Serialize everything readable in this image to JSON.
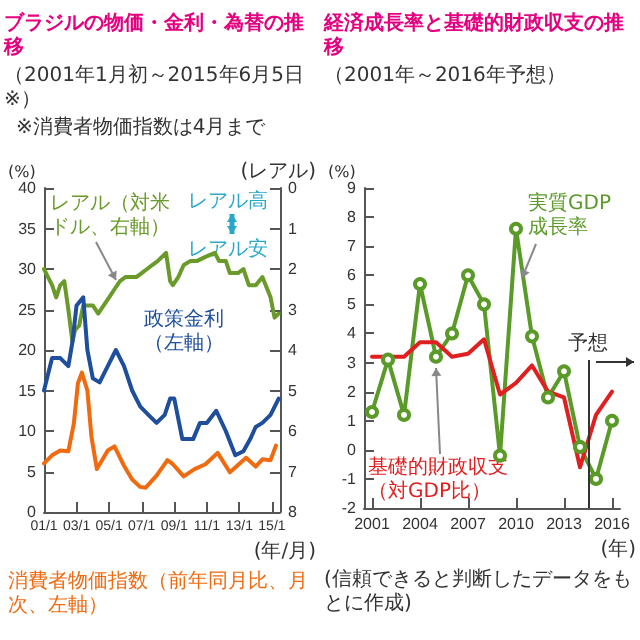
{
  "chart_data": [
    {
      "type": "line",
      "title": "ブラジルの物価・金利・為替の推移",
      "subtitle": "（2001年1月初～2015年6月5日※）",
      "annotations": [
        "※消費者物価指数は4月まで",
        "レアル高",
        "レアル安"
      ],
      "xlabel": "(年/月)",
      "ylabel": "(%)",
      "y2label": "(レアル)",
      "xlim": [
        "2001-01",
        "2015-07"
      ],
      "xticks": [
        {
          "value": "2001-01",
          "label": "01/1"
        },
        {
          "value": "2003-01",
          "label": "03/1"
        },
        {
          "value": "2005-01",
          "label": "05/1"
        },
        {
          "value": "2007-01",
          "label": "07/1"
        },
        {
          "value": "2009-01",
          "label": "09/1"
        },
        {
          "value": "2011-01",
          "label": "11/1"
        },
        {
          "value": "2013-01",
          "label": "13/1"
        },
        {
          "value": "2015-01",
          "label": "15/1"
        }
      ],
      "ylim": [
        0,
        40
      ],
      "yticks": [
        0,
        5,
        10,
        15,
        20,
        25,
        30,
        35,
        40
      ],
      "y2lim": [
        8,
        0
      ],
      "y2ticks": [
        0,
        1,
        2,
        3,
        4,
        5,
        6,
        7,
        8
      ],
      "grid": false,
      "legend": false,
      "marker": "none",
      "series": [
        {
          "name": "レアル（対米ドル、右軸）",
          "color": "#6a9a2a",
          "axis": "y2",
          "x": [
            "2001-01",
            "2001-04",
            "2001-07",
            "2001-10",
            "2002-01",
            "2002-04",
            "2002-07",
            "2002-10",
            "2002-12",
            "2003-03",
            "2003-06",
            "2003-09",
            "2004-01",
            "2004-05",
            "2004-09",
            "2005-01",
            "2005-05",
            "2005-09",
            "2006-01",
            "2006-05",
            "2006-09",
            "2007-01",
            "2007-05",
            "2007-09",
            "2008-01",
            "2008-07",
            "2008-10",
            "2008-12",
            "2009-04",
            "2009-08",
            "2010-01",
            "2010-06",
            "2010-12",
            "2011-07",
            "2011-10",
            "2012-03",
            "2012-06",
            "2012-12",
            "2013-04",
            "2013-08",
            "2014-01",
            "2014-06",
            "2014-12",
            "2015-03",
            "2015-06"
          ],
          "values": [
            2.0,
            2.2,
            2.4,
            2.7,
            2.4,
            2.3,
            3.0,
            3.8,
            3.5,
            3.4,
            2.9,
            2.9,
            2.9,
            3.1,
            2.9,
            2.7,
            2.5,
            2.3,
            2.2,
            2.2,
            2.2,
            2.1,
            2.0,
            1.9,
            1.8,
            1.6,
            2.3,
            2.4,
            2.2,
            1.9,
            1.8,
            1.8,
            1.7,
            1.6,
            1.8,
            1.8,
            2.1,
            2.1,
            2.0,
            2.4,
            2.4,
            2.2,
            2.7,
            3.2,
            3.1
          ]
        },
        {
          "name": "政策金利（左軸）",
          "color": "#1f4e9c",
          "x": [
            "2001-01",
            "2001-07",
            "2002-01",
            "2002-07",
            "2002-10",
            "2003-01",
            "2003-06",
            "2003-09",
            "2004-01",
            "2004-06",
            "2004-12",
            "2005-06",
            "2005-12",
            "2006-06",
            "2006-12",
            "2007-06",
            "2007-12",
            "2008-06",
            "2008-10",
            "2009-01",
            "2009-07",
            "2010-03",
            "2010-08",
            "2011-01",
            "2011-08",
            "2012-03",
            "2012-10",
            "2013-04",
            "2013-09",
            "2014-01",
            "2014-06",
            "2014-12",
            "2015-06"
          ],
          "values": [
            15,
            19,
            19,
            18,
            21,
            25.5,
            26.5,
            20,
            16.5,
            16,
            18,
            20,
            18,
            15,
            13,
            12,
            11,
            12,
            14,
            14,
            9,
            9,
            11,
            11,
            12.5,
            10,
            7,
            7.5,
            9,
            10.5,
            11,
            12,
            14
          ]
        },
        {
          "name": "消費者物価指数（前年同月比、月次、左軸）",
          "color": "#f06a10",
          "x": [
            "2001-01",
            "2001-07",
            "2002-01",
            "2002-07",
            "2002-11",
            "2003-02",
            "2003-05",
            "2003-09",
            "2003-12",
            "2004-04",
            "2004-12",
            "2005-05",
            "2005-12",
            "2006-06",
            "2006-12",
            "2007-04",
            "2007-12",
            "2008-08",
            "2008-12",
            "2009-08",
            "2010-04",
            "2010-12",
            "2011-09",
            "2012-06",
            "2012-12",
            "2013-06",
            "2014-01",
            "2014-06",
            "2014-12",
            "2015-04"
          ],
          "values": [
            6,
            7,
            7.6,
            7.5,
            10.9,
            15.9,
            17.2,
            15,
            9.3,
            5.3,
            7.6,
            8.1,
            5.7,
            4,
            3.1,
            3,
            4.5,
            6.4,
            5.9,
            4.4,
            5.3,
            5.9,
            7.3,
            4.9,
            5.8,
            6.7,
            5.6,
            6.5,
            6.4,
            8.2
          ]
        }
      ]
    },
    {
      "type": "line",
      "title": "経済成長率と基礎的財政収支の推移",
      "subtitle": "（2001年～2016年予想）",
      "annotations": [
        "(信頼できると判断したデータをもとに作成)"
      ],
      "xlabel": "(年)",
      "ylabel": "(%)",
      "x": [
        2001,
        2002,
        2003,
        2004,
        2005,
        2006,
        2007,
        2008,
        2009,
        2010,
        2011,
        2012,
        2013,
        2014,
        2015,
        2016
      ],
      "xlim": [
        2000.5,
        2016.5
      ],
      "xticks": [
        2001,
        2004,
        2007,
        2010,
        2013,
        2016
      ],
      "ylim": [
        -2,
        9
      ],
      "yticks": [
        -2,
        -1,
        0,
        1,
        2,
        3,
        4,
        5,
        6,
        7,
        8,
        9
      ],
      "grid": false,
      "legend": false,
      "ref_lines": [
        {
          "axis": "x",
          "value": 2014.5,
          "label": "予想",
          "color": "#333333"
        }
      ],
      "series": [
        {
          "name": "実質GDP成長率",
          "color": "#5a9a28",
          "marker": "circle",
          "values": [
            1.3,
            3.1,
            1.2,
            5.7,
            3.2,
            4.0,
            6.0,
            5.0,
            -0.2,
            7.6,
            3.9,
            1.8,
            2.7,
            0.1,
            -1.0,
            1.0
          ]
        },
        {
          "name": "基礎的財政収支（対GDP比）",
          "color": "#e02020",
          "marker": "none",
          "values": [
            3.2,
            3.2,
            3.2,
            3.7,
            3.7,
            3.2,
            3.3,
            3.8,
            1.9,
            2.3,
            2.9,
            2.0,
            1.8,
            -0.6,
            1.2,
            2.0
          ]
        }
      ]
    }
  ]
}
